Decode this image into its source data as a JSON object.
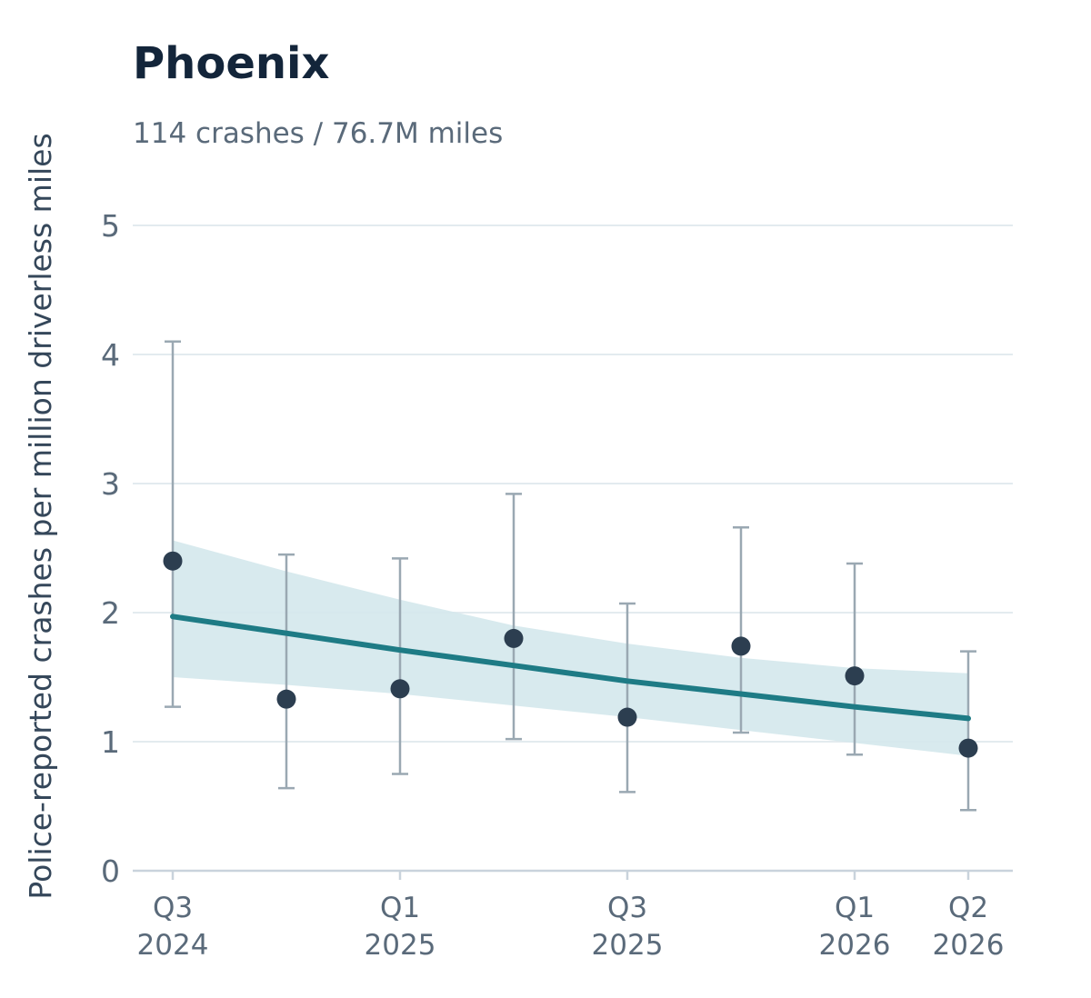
{
  "chart_data": {
    "type": "scatter",
    "title": "Phoenix",
    "subtitle": "114 crashes / 76.7M miles",
    "ylabel": "Police-reported crashes per million driverless miles",
    "xlabel": "",
    "ylim": [
      0,
      5
    ],
    "yticks": [
      0,
      1,
      2,
      3,
      4,
      5
    ],
    "grid": true,
    "x_index_range": [
      0,
      7
    ],
    "xticks": [
      {
        "index": 0,
        "line1": "Q3",
        "line2": "2024"
      },
      {
        "index": 2,
        "line1": "Q1",
        "line2": "2025"
      },
      {
        "index": 4,
        "line1": "Q3",
        "line2": "2025"
      },
      {
        "index": 6,
        "line1": "Q1",
        "line2": "2026"
      },
      {
        "index": 7,
        "line1": "Q2",
        "line2": "2026"
      }
    ],
    "points": [
      {
        "quarter": "Q3 2024",
        "value": 2.4,
        "ci_low": 1.27,
        "ci_high": 4.1
      },
      {
        "quarter": "Q4 2024",
        "value": 1.33,
        "ci_low": 0.64,
        "ci_high": 2.45
      },
      {
        "quarter": "Q1 2025",
        "value": 1.41,
        "ci_low": 0.75,
        "ci_high": 2.42
      },
      {
        "quarter": "Q2 2025",
        "value": 1.8,
        "ci_low": 1.02,
        "ci_high": 2.92
      },
      {
        "quarter": "Q3 2025",
        "value": 1.19,
        "ci_low": 0.61,
        "ci_high": 2.07
      },
      {
        "quarter": "Q4 2025",
        "value": 1.74,
        "ci_low": 1.07,
        "ci_high": 2.66
      },
      {
        "quarter": "Q1 2026",
        "value": 1.51,
        "ci_low": 0.9,
        "ci_high": 2.38
      },
      {
        "quarter": "Q2 2026",
        "value": 0.95,
        "ci_low": 0.47,
        "ci_high": 1.7
      }
    ],
    "trend": {
      "values": [
        1.97,
        1.84,
        1.71,
        1.59,
        1.47,
        1.37,
        1.27,
        1.18
      ],
      "band_low": [
        1.5,
        1.44,
        1.37,
        1.28,
        1.19,
        1.09,
        0.99,
        0.89
      ],
      "band_high": [
        2.56,
        2.32,
        2.1,
        1.9,
        1.76,
        1.65,
        1.57,
        1.53
      ]
    },
    "colors": {
      "point": "#2c3e50",
      "errorbar": "#9aa8b2",
      "trend_line": "#1e7b85",
      "band": "#d4e8ec",
      "grid": "#e3ebef",
      "axis": "#c9d3dc"
    }
  }
}
